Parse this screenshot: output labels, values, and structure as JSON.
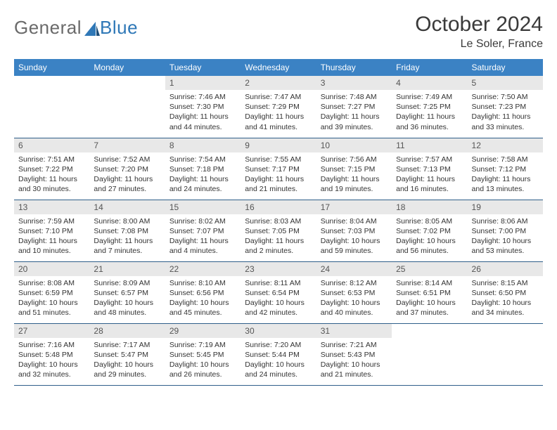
{
  "logo": {
    "part1": "General",
    "part2": "Blue"
  },
  "title": "October 2024",
  "subtitle": "Le Soler, France",
  "colors": {
    "header_bg": "#3b82c4",
    "header_fg": "#ffffff",
    "daynum_bg": "#e8e8e8",
    "rule": "#2f5f8a",
    "logo_gray": "#6a6a6a",
    "logo_blue": "#2f78b7"
  },
  "weekdays": [
    "Sunday",
    "Monday",
    "Tuesday",
    "Wednesday",
    "Thursday",
    "Friday",
    "Saturday"
  ],
  "first_weekday_index": 2,
  "days": [
    {
      "n": 1,
      "sr": "7:46 AM",
      "ss": "7:30 PM",
      "dl": "11 hours and 44 minutes."
    },
    {
      "n": 2,
      "sr": "7:47 AM",
      "ss": "7:29 PM",
      "dl": "11 hours and 41 minutes."
    },
    {
      "n": 3,
      "sr": "7:48 AM",
      "ss": "7:27 PM",
      "dl": "11 hours and 39 minutes."
    },
    {
      "n": 4,
      "sr": "7:49 AM",
      "ss": "7:25 PM",
      "dl": "11 hours and 36 minutes."
    },
    {
      "n": 5,
      "sr": "7:50 AM",
      "ss": "7:23 PM",
      "dl": "11 hours and 33 minutes."
    },
    {
      "n": 6,
      "sr": "7:51 AM",
      "ss": "7:22 PM",
      "dl": "11 hours and 30 minutes."
    },
    {
      "n": 7,
      "sr": "7:52 AM",
      "ss": "7:20 PM",
      "dl": "11 hours and 27 minutes."
    },
    {
      "n": 8,
      "sr": "7:54 AM",
      "ss": "7:18 PM",
      "dl": "11 hours and 24 minutes."
    },
    {
      "n": 9,
      "sr": "7:55 AM",
      "ss": "7:17 PM",
      "dl": "11 hours and 21 minutes."
    },
    {
      "n": 10,
      "sr": "7:56 AM",
      "ss": "7:15 PM",
      "dl": "11 hours and 19 minutes."
    },
    {
      "n": 11,
      "sr": "7:57 AM",
      "ss": "7:13 PM",
      "dl": "11 hours and 16 minutes."
    },
    {
      "n": 12,
      "sr": "7:58 AM",
      "ss": "7:12 PM",
      "dl": "11 hours and 13 minutes."
    },
    {
      "n": 13,
      "sr": "7:59 AM",
      "ss": "7:10 PM",
      "dl": "11 hours and 10 minutes."
    },
    {
      "n": 14,
      "sr": "8:00 AM",
      "ss": "7:08 PM",
      "dl": "11 hours and 7 minutes."
    },
    {
      "n": 15,
      "sr": "8:02 AM",
      "ss": "7:07 PM",
      "dl": "11 hours and 4 minutes."
    },
    {
      "n": 16,
      "sr": "8:03 AM",
      "ss": "7:05 PM",
      "dl": "11 hours and 2 minutes."
    },
    {
      "n": 17,
      "sr": "8:04 AM",
      "ss": "7:03 PM",
      "dl": "10 hours and 59 minutes."
    },
    {
      "n": 18,
      "sr": "8:05 AM",
      "ss": "7:02 PM",
      "dl": "10 hours and 56 minutes."
    },
    {
      "n": 19,
      "sr": "8:06 AM",
      "ss": "7:00 PM",
      "dl": "10 hours and 53 minutes."
    },
    {
      "n": 20,
      "sr": "8:08 AM",
      "ss": "6:59 PM",
      "dl": "10 hours and 51 minutes."
    },
    {
      "n": 21,
      "sr": "8:09 AM",
      "ss": "6:57 PM",
      "dl": "10 hours and 48 minutes."
    },
    {
      "n": 22,
      "sr": "8:10 AM",
      "ss": "6:56 PM",
      "dl": "10 hours and 45 minutes."
    },
    {
      "n": 23,
      "sr": "8:11 AM",
      "ss": "6:54 PM",
      "dl": "10 hours and 42 minutes."
    },
    {
      "n": 24,
      "sr": "8:12 AM",
      "ss": "6:53 PM",
      "dl": "10 hours and 40 minutes."
    },
    {
      "n": 25,
      "sr": "8:14 AM",
      "ss": "6:51 PM",
      "dl": "10 hours and 37 minutes."
    },
    {
      "n": 26,
      "sr": "8:15 AM",
      "ss": "6:50 PM",
      "dl": "10 hours and 34 minutes."
    },
    {
      "n": 27,
      "sr": "7:16 AM",
      "ss": "5:48 PM",
      "dl": "10 hours and 32 minutes."
    },
    {
      "n": 28,
      "sr": "7:17 AM",
      "ss": "5:47 PM",
      "dl": "10 hours and 29 minutes."
    },
    {
      "n": 29,
      "sr": "7:19 AM",
      "ss": "5:45 PM",
      "dl": "10 hours and 26 minutes."
    },
    {
      "n": 30,
      "sr": "7:20 AM",
      "ss": "5:44 PM",
      "dl": "10 hours and 24 minutes."
    },
    {
      "n": 31,
      "sr": "7:21 AM",
      "ss": "5:43 PM",
      "dl": "10 hours and 21 minutes."
    }
  ],
  "labels": {
    "sunrise": "Sunrise:",
    "sunset": "Sunset:",
    "daylight": "Daylight:"
  }
}
